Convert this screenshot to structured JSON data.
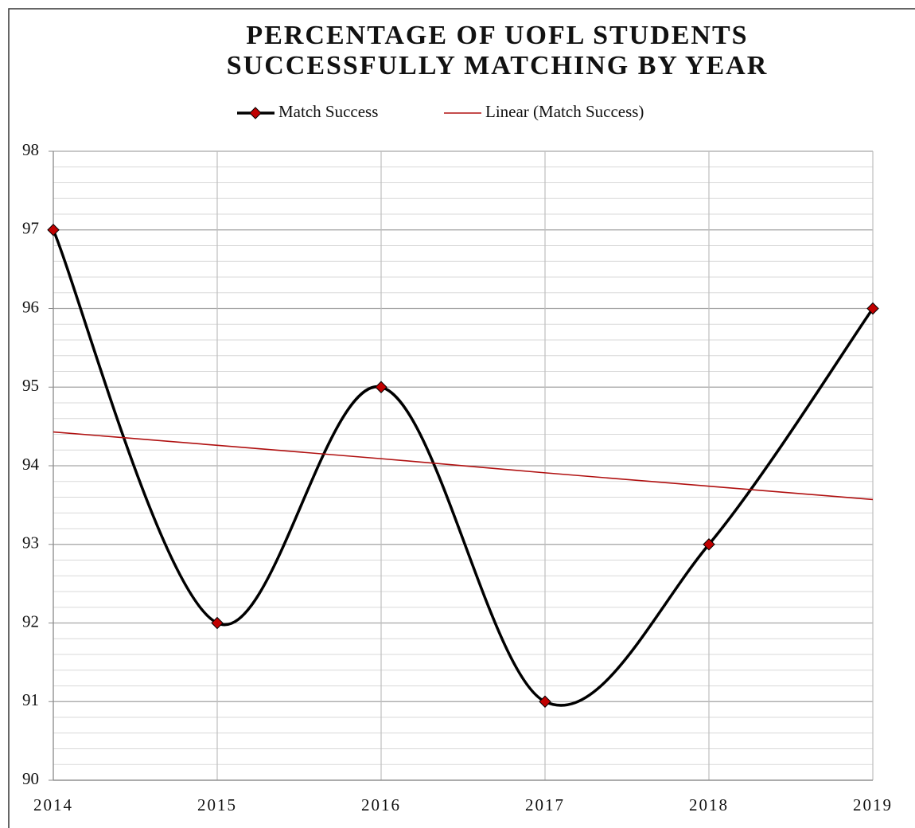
{
  "chart_data": {
    "type": "line",
    "title": "PERCENTAGE OF UOFL STUDENTS SUCCESSFULLY MATCHING BY YEAR",
    "x": [
      2014,
      2015,
      2016,
      2017,
      2018,
      2019
    ],
    "series": [
      {
        "name": "Match Success",
        "color": "#000000",
        "marker_color": "#c00000",
        "smooth": true,
        "marker": "diamond",
        "values": [
          97,
          92,
          95,
          91,
          93,
          96
        ]
      },
      {
        "name": "Linear (Match Success)",
        "color": "#b01010",
        "smooth": false,
        "marker": "none",
        "values": [
          94.43,
          94.26,
          94.09,
          93.91,
          93.74,
          93.57
        ]
      }
    ],
    "xlim": [
      2014,
      2019
    ],
    "xticks": [
      2014,
      2015,
      2016,
      2017,
      2018,
      2019
    ],
    "ylim": [
      90,
      98
    ],
    "yticks": [
      90,
      91,
      92,
      93,
      94,
      95,
      96,
      97,
      98
    ],
    "grid": true,
    "minor_grid_step": 0.2,
    "legend": "top"
  }
}
